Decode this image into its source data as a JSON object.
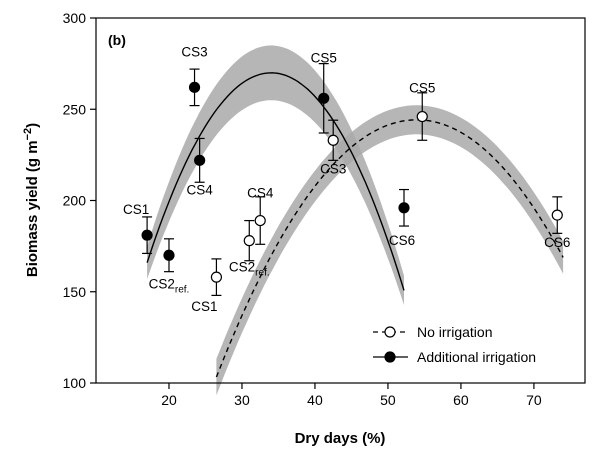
{
  "chart_data": {
    "type": "scatter",
    "panel_label": "(b)",
    "xlabel": "Dry days (%)",
    "ylabel_main": "Biomass yield (g m",
    "ylabel_sup": "−2",
    "ylabel_end": ")",
    "xlim": [
      10,
      77
    ],
    "ylim": [
      100,
      300
    ],
    "xticks": [
      20,
      30,
      40,
      50,
      60,
      70
    ],
    "yticks": [
      100,
      150,
      200,
      250,
      300
    ],
    "band_color": "#a9a9a9",
    "series": [
      {
        "name": "No irrigation",
        "marker": "open-circle",
        "line": "dashed",
        "points": [
          {
            "label": "CS1",
            "x": 26.5,
            "y": 158,
            "err": 10
          },
          {
            "label": "CS2",
            "label_sub": "ref.",
            "x": 31.0,
            "y": 178,
            "err": 11
          },
          {
            "label": "CS4",
            "x": 32.5,
            "y": 189,
            "err": 13
          },
          {
            "label": "CS3",
            "x": 42.5,
            "y": 233,
            "err": 11
          },
          {
            "label": "CS5",
            "x": 54.7,
            "y": 246,
            "err": 13
          },
          {
            "label": "CS6",
            "x": 73.2,
            "y": 192,
            "err": 10
          }
        ],
        "fit_x": [
          26.5,
          74.0
        ],
        "fit_coeffs": [
          -0.18727,
          20.2,
          -300.5
        ],
        "band_halfwidth": [
          10,
          8,
          9
        ]
      },
      {
        "name": "Additional irrigation",
        "marker": "filled-circle",
        "line": "solid",
        "points": [
          {
            "label": "CS1",
            "x": 17.0,
            "y": 181,
            "err": 10
          },
          {
            "label": "CS2",
            "label_sub": "ref.",
            "x": 20.0,
            "y": 170,
            "err": 9
          },
          {
            "label": "CS3",
            "x": 23.5,
            "y": 262,
            "err": 10
          },
          {
            "label": "CS4",
            "x": 24.2,
            "y": 222,
            "err": 12
          },
          {
            "label": "CS5",
            "x": 41.2,
            "y": 256,
            "err": 19
          },
          {
            "label": "CS6",
            "x": 52.2,
            "y": 196,
            "err": 10
          }
        ],
        "fit_x": [
          17.0,
          52.2
        ],
        "fit_coeffs": [
          -0.36,
          24.48,
          -146.2
        ],
        "band_halfwidth": [
          9,
          15,
          8
        ]
      }
    ],
    "legend": {
      "position": "bottom-right",
      "entries": [
        "No irrigation",
        "Additional irrigation"
      ]
    }
  }
}
